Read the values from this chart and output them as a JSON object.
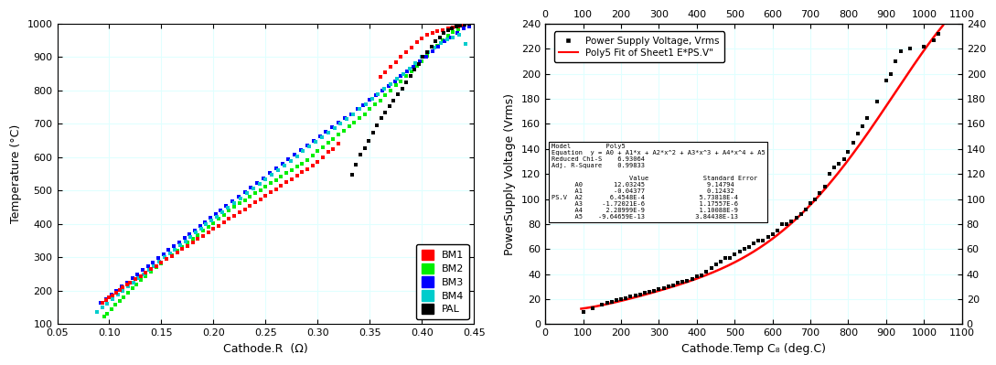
{
  "left": {
    "xlabel": "Cathode.R  (Ω)",
    "ylabel": "Temperature (°C)",
    "xlim": [
      0.05,
      0.45
    ],
    "ylim": [
      100,
      1000
    ],
    "xticks": [
      0.05,
      0.1,
      0.15,
      0.2,
      0.25,
      0.3,
      0.35,
      0.4,
      0.45
    ],
    "yticks": [
      100,
      200,
      300,
      400,
      500,
      600,
      700,
      800,
      900,
      1000
    ],
    "series": {
      "BM1": {
        "color": "#FF0000",
        "marker": "s",
        "size": 10
      },
      "BM2": {
        "color": "#00EE00",
        "marker": "s",
        "size": 10
      },
      "BM3": {
        "color": "#0000FF",
        "marker": "s",
        "size": 10
      },
      "BM4": {
        "color": "#00CCCC",
        "marker": "s",
        "size": 10
      },
      "PAL": {
        "color": "#000000",
        "marker": "s",
        "size": 10
      }
    },
    "BM1_data": {
      "R": [
        0.093,
        0.097,
        0.1,
        0.103,
        0.107,
        0.11,
        0.113,
        0.117,
        0.12,
        0.125,
        0.13,
        0.135,
        0.14,
        0.145,
        0.15,
        0.155,
        0.16,
        0.165,
        0.17,
        0.175,
        0.18,
        0.185,
        0.19,
        0.195,
        0.2,
        0.205,
        0.21,
        0.215,
        0.22,
        0.225,
        0.23,
        0.235,
        0.24,
        0.245,
        0.25,
        0.255,
        0.26,
        0.265,
        0.27,
        0.275,
        0.28,
        0.285,
        0.29,
        0.295,
        0.3,
        0.305,
        0.31,
        0.315,
        0.32,
        0.36,
        0.365,
        0.37,
        0.375,
        0.38,
        0.385,
        0.39,
        0.395,
        0.4,
        0.405,
        0.41,
        0.415,
        0.42,
        0.425,
        0.43,
        0.435,
        0.44,
        0.445
      ],
      "T": [
        165,
        173,
        180,
        187,
        195,
        202,
        210,
        218,
        225,
        235,
        245,
        255,
        265,
        275,
        285,
        295,
        305,
        315,
        325,
        335,
        345,
        355,
        365,
        375,
        385,
        395,
        405,
        415,
        425,
        435,
        445,
        455,
        465,
        475,
        485,
        495,
        505,
        515,
        525,
        535,
        545,
        555,
        565,
        575,
        585,
        600,
        615,
        625,
        640,
        840,
        855,
        870,
        885,
        900,
        915,
        930,
        945,
        957,
        966,
        972,
        978,
        982,
        986,
        990,
        993,
        996,
        999
      ]
    },
    "BM2_data": {
      "R": [
        0.095,
        0.098,
        0.102,
        0.106,
        0.11,
        0.114,
        0.118,
        0.122,
        0.126,
        0.13,
        0.135,
        0.14,
        0.145,
        0.15,
        0.155,
        0.16,
        0.165,
        0.17,
        0.175,
        0.18,
        0.185,
        0.19,
        0.195,
        0.2,
        0.205,
        0.21,
        0.215,
        0.22,
        0.225,
        0.23,
        0.235,
        0.24,
        0.245,
        0.25,
        0.255,
        0.26,
        0.265,
        0.27,
        0.275,
        0.28,
        0.285,
        0.29,
        0.295,
        0.3,
        0.305,
        0.31,
        0.315,
        0.32,
        0.325,
        0.33,
        0.335,
        0.34,
        0.345,
        0.35,
        0.355,
        0.36,
        0.365,
        0.37,
        0.375,
        0.38,
        0.385,
        0.39,
        0.395,
        0.4,
        0.405,
        0.41,
        0.415,
        0.42,
        0.425,
        0.43,
        0.435,
        0.44,
        0.445
      ],
      "T": [
        122,
        132,
        145,
        158,
        170,
        182,
        195,
        208,
        220,
        232,
        245,
        258,
        270,
        283,
        295,
        308,
        320,
        332,
        344,
        356,
        368,
        380,
        392,
        404,
        416,
        428,
        440,
        452,
        462,
        472,
        482,
        492,
        502,
        512,
        522,
        532,
        542,
        552,
        562,
        572,
        582,
        592,
        605,
        618,
        630,
        643,
        655,
        668,
        680,
        693,
        705,
        718,
        730,
        745,
        758,
        770,
        785,
        800,
        815,
        828,
        843,
        858,
        873,
        888,
        903,
        918,
        933,
        950,
        963,
        975,
        983,
        990,
        998
      ]
    },
    "BM3_data": {
      "R": [
        0.092,
        0.097,
        0.102,
        0.107,
        0.112,
        0.117,
        0.122,
        0.127,
        0.132,
        0.137,
        0.142,
        0.147,
        0.152,
        0.157,
        0.162,
        0.167,
        0.172,
        0.177,
        0.182,
        0.187,
        0.192,
        0.197,
        0.202,
        0.207,
        0.212,
        0.218,
        0.224,
        0.23,
        0.236,
        0.242,
        0.248,
        0.254,
        0.26,
        0.266,
        0.272,
        0.278,
        0.284,
        0.29,
        0.296,
        0.302,
        0.308,
        0.314,
        0.32,
        0.326,
        0.332,
        0.338,
        0.344,
        0.35,
        0.356,
        0.362,
        0.368,
        0.374,
        0.38,
        0.386,
        0.392,
        0.398,
        0.404,
        0.41,
        0.416,
        0.422,
        0.428,
        0.434,
        0.44,
        0.445
      ],
      "T": [
        163,
        175,
        188,
        200,
        213,
        225,
        237,
        250,
        262,
        274,
        286,
        298,
        310,
        322,
        334,
        346,
        358,
        370,
        382,
        394,
        406,
        418,
        430,
        442,
        454,
        468,
        482,
        496,
        510,
        524,
        538,
        552,
        566,
        580,
        594,
        608,
        622,
        636,
        650,
        663,
        676,
        690,
        703,
        717,
        730,
        744,
        757,
        772,
        786,
        800,
        814,
        828,
        843,
        858,
        872,
        887,
        902,
        917,
        932,
        947,
        960,
        973,
        985,
        992
      ]
    },
    "BM4_data": {
      "R": [
        0.088,
        0.093,
        0.098,
        0.103,
        0.108,
        0.113,
        0.118,
        0.123,
        0.128,
        0.133,
        0.138,
        0.143,
        0.148,
        0.153,
        0.158,
        0.163,
        0.168,
        0.173,
        0.178,
        0.183,
        0.188,
        0.193,
        0.198,
        0.203,
        0.208,
        0.214,
        0.22,
        0.226,
        0.232,
        0.238,
        0.244,
        0.25,
        0.256,
        0.262,
        0.268,
        0.274,
        0.28,
        0.286,
        0.292,
        0.298,
        0.304,
        0.31,
        0.316,
        0.322,
        0.328,
        0.334,
        0.34,
        0.346,
        0.352,
        0.358,
        0.364,
        0.37,
        0.376,
        0.382,
        0.388,
        0.394,
        0.4,
        0.406,
        0.412,
        0.418,
        0.424,
        0.43,
        0.436,
        0.442
      ],
      "T": [
        138,
        150,
        162,
        175,
        188,
        200,
        213,
        225,
        238,
        250,
        262,
        275,
        287,
        300,
        312,
        324,
        337,
        349,
        362,
        374,
        386,
        399,
        411,
        423,
        436,
        450,
        464,
        478,
        492,
        506,
        520,
        534,
        548,
        562,
        576,
        590,
        604,
        618,
        632,
        646,
        660,
        674,
        688,
        702,
        716,
        730,
        745,
        760,
        775,
        790,
        805,
        820,
        835,
        850,
        865,
        882,
        900,
        916,
        930,
        942,
        952,
        960,
        967,
        940
      ]
    },
    "PAL_data": {
      "R": [
        0.333,
        0.337,
        0.341,
        0.345,
        0.349,
        0.353,
        0.357,
        0.361,
        0.365,
        0.369,
        0.373,
        0.377,
        0.381,
        0.385,
        0.389,
        0.393,
        0.397,
        0.401,
        0.405,
        0.409,
        0.413,
        0.417,
        0.421,
        0.425,
        0.429,
        0.433,
        0.437,
        0.441,
        0.445
      ],
      "T": [
        549,
        578,
        607,
        627,
        650,
        673,
        697,
        717,
        735,
        752,
        770,
        788,
        806,
        824,
        843,
        862,
        880,
        900,
        916,
        932,
        947,
        960,
        972,
        980,
        986,
        991,
        995,
        997,
        999
      ]
    }
  },
  "right": {
    "xlabel": "Cathode.Temp C₈ (deg.C)",
    "ylabel": "PowerSupply Voltage (Vrms)",
    "xlim": [
      0,
      1100
    ],
    "ylim": [
      0,
      240
    ],
    "xticks_bottom": [
      0,
      100,
      200,
      300,
      400,
      500,
      600,
      700,
      800,
      900,
      1000,
      1100
    ],
    "xticks_top": [
      0,
      100,
      200,
      300,
      400,
      500,
      600,
      700,
      800,
      900,
      1000,
      1100
    ],
    "yticks": [
      0,
      20,
      40,
      60,
      80,
      100,
      120,
      140,
      160,
      180,
      200,
      220,
      240
    ],
    "poly_coeffs_ascending": [
      -9.64659e-13,
      2.28999e-09,
      -1.72021e-06,
      0.00064548,
      -0.04377,
      12.03245
    ],
    "legend_label_scatter": "Power Supply Voltage, Vrms",
    "legend_label_fit": "Poly5 Fit of Sheet1 E*PS.V\"",
    "fit_color": "#FF0000",
    "scatter_color": "#000000",
    "scatter_data": {
      "T": [
        100,
        125,
        150,
        163,
        175,
        188,
        200,
        213,
        225,
        238,
        250,
        263,
        275,
        288,
        300,
        313,
        325,
        338,
        350,
        363,
        375,
        388,
        400,
        413,
        425,
        438,
        450,
        463,
        475,
        488,
        500,
        513,
        525,
        538,
        550,
        563,
        575,
        588,
        600,
        613,
        625,
        638,
        650,
        663,
        675,
        688,
        700,
        713,
        725,
        738,
        750,
        763,
        775,
        788,
        800,
        813,
        825,
        838,
        850,
        875,
        900,
        913,
        925,
        938,
        963,
        1000,
        1025,
        1038
      ],
      "V": [
        10,
        13,
        16,
        17,
        18,
        19,
        20,
        21,
        22,
        23,
        24,
        25,
        26,
        27,
        28,
        29,
        30,
        31,
        33,
        34,
        35,
        36,
        38,
        39,
        42,
        45,
        48,
        50,
        53,
        53,
        56,
        58,
        60,
        62,
        65,
        67,
        67,
        70,
        72,
        75,
        80,
        80,
        82,
        85,
        88,
        92,
        97,
        100,
        105,
        110,
        120,
        125,
        128,
        132,
        138,
        145,
        152,
        158,
        165,
        178,
        195,
        200,
        210,
        218,
        220,
        222,
        227,
        232
      ]
    }
  }
}
